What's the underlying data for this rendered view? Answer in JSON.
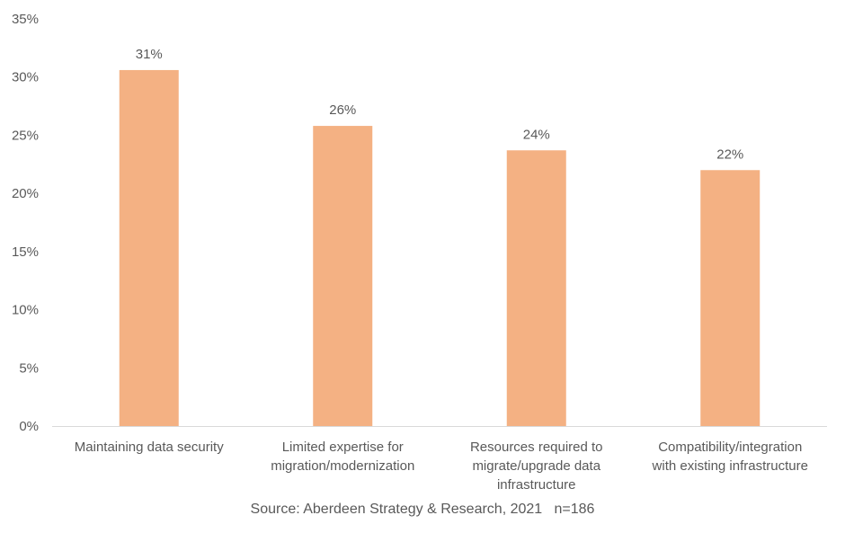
{
  "chart_data": {
    "type": "bar",
    "categories": [
      [
        "Maintaining data security"
      ],
      [
        "Limited expertise for",
        "migration/modernization"
      ],
      [
        "Resources required to",
        "migrate/upgrade data",
        "infrastructure"
      ],
      [
        "Compatibility/integration",
        "with existing infrastructure"
      ]
    ],
    "values": [
      30.6,
      25.8,
      23.7,
      22.0
    ],
    "data_labels": [
      "31%",
      "26%",
      "24%",
      "22%"
    ],
    "ylim": [
      0,
      35
    ],
    "yticks": [
      "0%",
      "5%",
      "10%",
      "15%",
      "20%",
      "25%",
      "30%",
      "35%"
    ],
    "grid": false,
    "bar_color": "#F4B183",
    "title": "",
    "xlabel": "",
    "ylabel": ""
  },
  "source": "Source: Aberdeen Strategy & Research, 2021   n=186"
}
